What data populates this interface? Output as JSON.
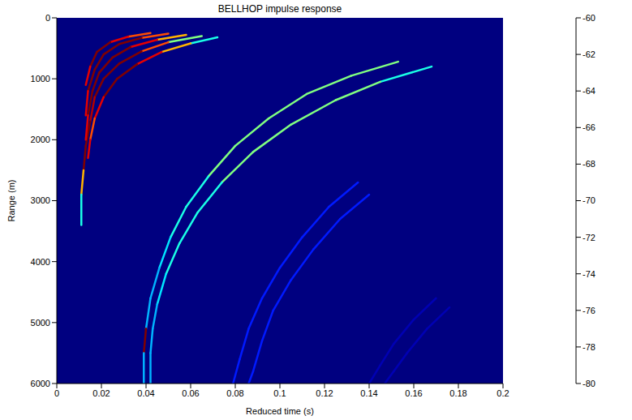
{
  "chart_data": {
    "type": "heatmap",
    "title": "BELLHOP impulse response",
    "x_label": "Reduced time (s)",
    "y_label": "Range (m)",
    "xlim": [
      0,
      0.2
    ],
    "xticks": [
      0,
      0.02,
      0.04,
      0.06,
      0.08,
      0.1,
      0.12,
      0.14,
      0.16,
      0.18,
      0.2
    ],
    "ylim": [
      6000,
      0
    ],
    "yticks": [
      0,
      1000,
      2000,
      3000,
      4000,
      5000,
      6000
    ],
    "grid": false,
    "colorbar": {
      "range": [
        -80,
        -60
      ],
      "ticks": [
        -60,
        -62,
        -64,
        -66,
        -68,
        -70,
        -72,
        -74,
        -76,
        -78,
        -80
      ]
    },
    "arrivals": [
      {
        "x": [
          0.065,
          0.05,
          0.038,
          0.028,
          0.021,
          0.017,
          0.015,
          0.013,
          0.012,
          0.011,
          0.011
        ],
        "y": [
          300,
          400,
          550,
          750,
          1000,
          1300,
          1700,
          2100,
          2500,
          2900,
          3400
        ],
        "values": [
          -70,
          -64,
          -60,
          -60,
          -60,
          -61,
          -60,
          -60,
          -66,
          -72,
          -78
        ]
      },
      {
        "x": [
          0.058,
          0.045,
          0.033,
          0.025,
          0.019,
          0.016,
          0.014,
          0.013
        ],
        "y": [
          280,
          360,
          480,
          650,
          900,
          1200,
          1600,
          2000
        ],
        "values": [
          -66,
          -62,
          -60,
          -60,
          -60,
          -60,
          -62,
          -64
        ]
      },
      {
        "x": [
          0.05,
          0.038,
          0.028,
          0.021,
          0.017,
          0.014,
          0.013
        ],
        "y": [
          260,
          330,
          430,
          600,
          850,
          1200,
          1600
        ],
        "values": [
          -64,
          -60,
          -60,
          -60,
          -60,
          -62,
          -66
        ]
      },
      {
        "x": [
          0.042,
          0.032,
          0.024,
          0.018,
          0.015,
          0.013
        ],
        "y": [
          250,
          310,
          400,
          560,
          800,
          1100
        ],
        "values": [
          -64,
          -62,
          -60,
          -60,
          -62,
          -66
        ]
      },
      {
        "x": [
          0.072,
          0.06,
          0.047,
          0.036,
          0.027,
          0.021,
          0.017,
          0.015,
          0.014
        ],
        "y": [
          320,
          420,
          560,
          760,
          1000,
          1300,
          1650,
          2000,
          2300
        ],
        "values": [
          -72,
          -66,
          -62,
          -60,
          -60,
          -62,
          -64,
          -62,
          -60
        ]
      },
      {
        "x": [
          0.168,
          0.145,
          0.125,
          0.105,
          0.088,
          0.074,
          0.063,
          0.055,
          0.049,
          0.045,
          0.043,
          0.042,
          0.042
        ],
        "y": [
          800,
          1050,
          1350,
          1750,
          2200,
          2700,
          3200,
          3700,
          4200,
          4700,
          5100,
          5500,
          6000
        ],
        "values": [
          -72,
          -70,
          -70,
          -70,
          -70,
          -72,
          -72,
          -72,
          -73,
          -74,
          -74,
          -74,
          -74
        ]
      },
      {
        "x": [
          0.153,
          0.132,
          0.112,
          0.095,
          0.08,
          0.068,
          0.058,
          0.051,
          0.046,
          0.042,
          0.04,
          0.039,
          0.039
        ],
        "y": [
          720,
          950,
          1250,
          1650,
          2100,
          2600,
          3100,
          3600,
          4100,
          4600,
          5100,
          5500,
          6000
        ],
        "values": [
          -70,
          -70,
          -70,
          -70,
          -70,
          -72,
          -72,
          -73,
          -74,
          -74,
          -60,
          -74,
          -64
        ]
      },
      {
        "x": [
          0.135,
          0.122,
          0.11,
          0.1,
          0.092,
          0.086,
          0.082,
          0.079
        ],
        "y": [
          2700,
          3100,
          3600,
          4100,
          4600,
          5100,
          5600,
          6000
        ],
        "values": [
          -77,
          -77,
          -77,
          -77,
          -77,
          -77,
          -77,
          -77
        ]
      },
      {
        "x": [
          0.14,
          0.127,
          0.115,
          0.105,
          0.097,
          0.092,
          0.088,
          0.086
        ],
        "y": [
          2900,
          3300,
          3800,
          4300,
          4800,
          5300,
          5800,
          6000
        ],
        "values": [
          -77,
          -77,
          -77,
          -77,
          -77,
          -77,
          -77,
          -77
        ]
      },
      {
        "x": [
          0.17,
          0.16,
          0.151,
          0.145,
          0.14
        ],
        "y": [
          4600,
          4950,
          5350,
          5700,
          6000
        ],
        "values": [
          -79,
          -79,
          -79,
          -79,
          -79
        ]
      },
      {
        "x": [
          0.176,
          0.166,
          0.157,
          0.151,
          0.147
        ],
        "y": [
          4750,
          5100,
          5500,
          5800,
          6000
        ],
        "values": [
          -79,
          -79,
          -79,
          -79,
          -79
        ]
      }
    ]
  }
}
